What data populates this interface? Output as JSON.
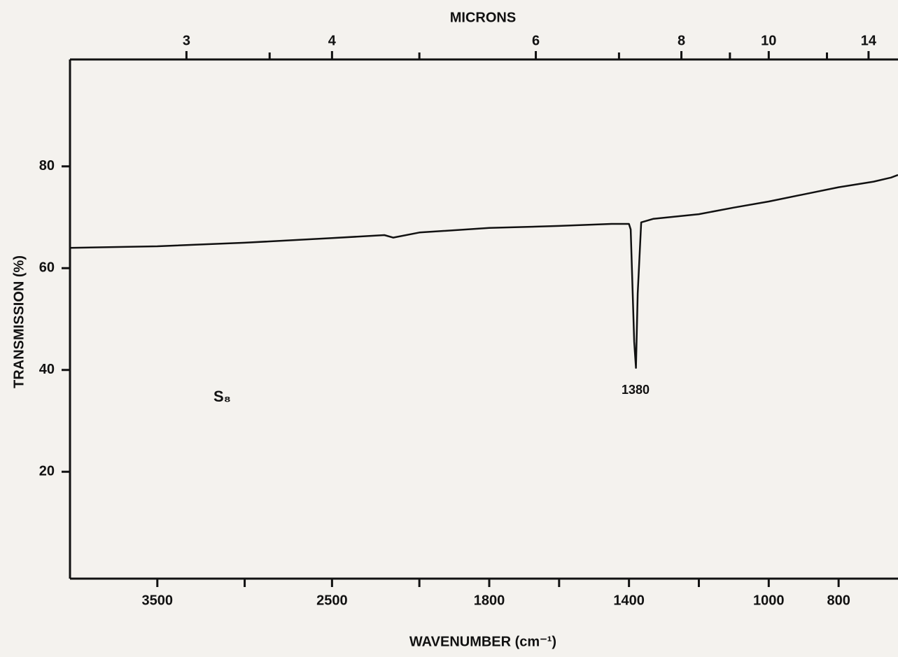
{
  "chart_data": {
    "type": "line",
    "top_axis_label": "MICRONS",
    "x_label": "WAVENUMBER (cm⁻¹)",
    "y_label": "TRANSMISSION (%)",
    "annotations": [
      "S₈",
      "1380"
    ],
    "xlim": [
      4000,
      630
    ],
    "x_scale_break": 2000,
    "x_scale_ratio": 2,
    "xticks": [
      3500,
      2500,
      1800,
      1400,
      1000,
      800
    ],
    "xminor_ticks": [
      3000,
      2000,
      1600,
      1200
    ],
    "x2ticks": [
      3,
      4,
      6,
      8,
      10,
      14
    ],
    "x2minor_ticks": [
      3.5,
      5,
      7,
      9,
      12
    ],
    "ylim": [
      -1,
      101
    ],
    "yticks": [
      20,
      40,
      60,
      80
    ],
    "grid": false,
    "series": [
      {
        "color": "#111111",
        "x": [
          4000,
          3500,
          3000,
          2500,
          2200,
          2150,
          2000,
          1800,
          1600,
          1450,
          1400,
          1395,
          1385,
          1380,
          1375,
          1365,
          1330,
          1200,
          1100,
          1000,
          900,
          800,
          700,
          650,
          630
        ],
        "values": [
          64,
          64.3,
          65,
          65.9,
          66.5,
          66,
          67,
          67.9,
          68.3,
          68.7,
          68.7,
          67.6,
          45.5,
          40.4,
          55,
          69,
          69.7,
          70.6,
          71.9,
          73.1,
          74.5,
          75.9,
          77,
          77.8,
          78.3
        ]
      }
    ]
  }
}
